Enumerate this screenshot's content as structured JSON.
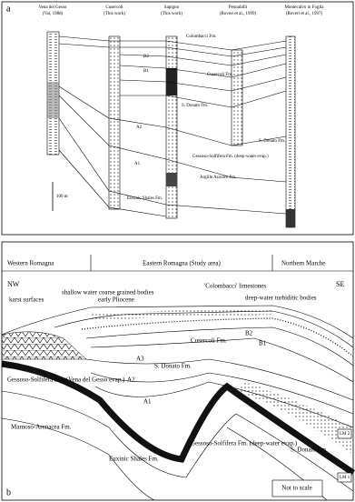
{
  "panel_a": {
    "label": "a",
    "columns": [
      {
        "name": "Vena del Gesso",
        "ref": "(Vai, 1988)"
      },
      {
        "name": "Cusercoli",
        "ref": "(This work)"
      },
      {
        "name": "Sapigno",
        "ref": "(This work)"
      },
      {
        "name": "Pennabilli",
        "ref": "(Roveri et al., 1999)"
      },
      {
        "name": "Montecalvo in Foglia",
        "ref": "(Roveri et al., 1997)"
      }
    ],
    "annotations": [
      "Colombacci Fm.",
      "B2",
      "B1",
      "Cusercoli Fm.",
      "A2",
      "S. Donato Fm.",
      "A1",
      "Gessoso-Solfifera Fm. (deep-water evap.)",
      "S. Donato Fm.",
      "Argille Azzurre Fm.",
      "Euxinic Shales Fm."
    ],
    "scale": "100 m"
  },
  "panel_b": {
    "label": "b",
    "regions": [
      "Western Romagna",
      "Eastern Romagna (Study area)",
      "Northern Marche"
    ],
    "orientation": [
      "NW",
      "SE"
    ],
    "annotations": {
      "karst": "karst surfaces",
      "colombacci": "'Colombacci' limestones",
      "shallow": "shallow water coarse grained bodies",
      "pliocene": "early Pliocene",
      "deep": "deep-water turbiditic bodies",
      "b2": "B2",
      "b1": "B1",
      "cusercoli": "Cusercoli Fm.",
      "a3": "A3",
      "sdonato": "S. Donato Fm.",
      "a2": "A2",
      "a1": "A1",
      "vena": "Gessoso-Solfifera Fm. (Vena del Gesso evap.)",
      "marnoso": "Marnoso-Arenacea Fm.",
      "euxinic": "Euxinic Shales Fm.",
      "deepevap": "Gessoso-Solfifera Fm. (deep-water evap.)",
      "sdonato2": "S. Donato Fm.",
      "lm2": "LM 2",
      "lm1": "LM 1",
      "scale": "Not to scale"
    }
  }
}
